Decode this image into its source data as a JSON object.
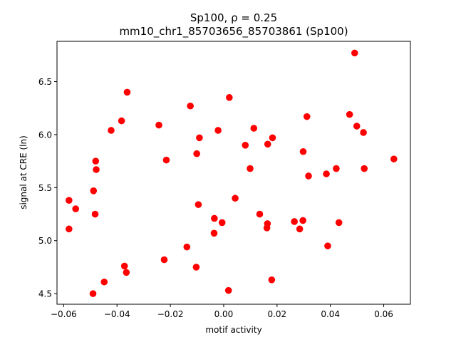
{
  "chart_data": {
    "type": "scatter",
    "title_line1": "Sp100, ρ = 0.25",
    "title_line2": "mm10_chr1_85703656_85703861 (Sp100)",
    "xlabel": "motif activity",
    "ylabel": "signal at CRE (ln)",
    "xlim": [
      -0.0625,
      0.07
    ],
    "ylim": [
      4.4,
      6.88
    ],
    "xticks": [
      -0.06,
      -0.04,
      -0.02,
      0.0,
      0.02,
      0.04,
      0.06
    ],
    "xtick_labels": [
      "−0.06",
      "−0.04",
      "−0.02",
      "0.00",
      "0.02",
      "0.04",
      "0.06"
    ],
    "yticks": [
      4.5,
      5.0,
      5.5,
      6.0,
      6.5
    ],
    "ytick_labels": [
      "4.5",
      "5.0",
      "5.5",
      "6.0",
      "6.5"
    ],
    "marker_color": "#ff0000",
    "grid": false,
    "points": [
      {
        "x": -0.058,
        "y": 5.38
      },
      {
        "x": -0.058,
        "y": 5.11
      },
      {
        "x": -0.0555,
        "y": 5.3
      },
      {
        "x": -0.049,
        "y": 4.5
      },
      {
        "x": -0.0488,
        "y": 5.47
      },
      {
        "x": -0.0482,
        "y": 5.25
      },
      {
        "x": -0.048,
        "y": 5.75
      },
      {
        "x": -0.0478,
        "y": 5.67
      },
      {
        "x": -0.0448,
        "y": 4.61
      },
      {
        "x": -0.0422,
        "y": 6.04
      },
      {
        "x": -0.0383,
        "y": 6.13
      },
      {
        "x": -0.0372,
        "y": 4.76
      },
      {
        "x": -0.0365,
        "y": 4.7
      },
      {
        "x": -0.0362,
        "y": 6.4
      },
      {
        "x": -0.0243,
        "y": 6.09
      },
      {
        "x": -0.0223,
        "y": 4.82
      },
      {
        "x": -0.0215,
        "y": 5.76
      },
      {
        "x": -0.0138,
        "y": 4.94
      },
      {
        "x": -0.0125,
        "y": 6.27
      },
      {
        "x": -0.0103,
        "y": 4.75
      },
      {
        "x": -0.0101,
        "y": 5.82
      },
      {
        "x": -0.0095,
        "y": 5.34
      },
      {
        "x": -0.0091,
        "y": 5.97
      },
      {
        "x": -0.0036,
        "y": 5.07
      },
      {
        "x": -0.0035,
        "y": 5.21
      },
      {
        "x": -0.0021,
        "y": 6.04
      },
      {
        "x": -0.0006,
        "y": 5.17
      },
      {
        "x": 0.0018,
        "y": 4.53
      },
      {
        "x": 0.0021,
        "y": 6.35
      },
      {
        "x": 0.0043,
        "y": 5.4
      },
      {
        "x": 0.0081,
        "y": 5.9
      },
      {
        "x": 0.0099,
        "y": 5.68
      },
      {
        "x": 0.0113,
        "y": 6.06
      },
      {
        "x": 0.0135,
        "y": 5.25
      },
      {
        "x": 0.0162,
        "y": 5.12
      },
      {
        "x": 0.0164,
        "y": 5.16
      },
      {
        "x": 0.0165,
        "y": 5.91
      },
      {
        "x": 0.018,
        "y": 4.63
      },
      {
        "x": 0.0183,
        "y": 5.97
      },
      {
        "x": 0.0265,
        "y": 5.18
      },
      {
        "x": 0.0285,
        "y": 5.11
      },
      {
        "x": 0.0297,
        "y": 5.19
      },
      {
        "x": 0.0298,
        "y": 5.84
      },
      {
        "x": 0.0312,
        "y": 6.17
      },
      {
        "x": 0.0318,
        "y": 5.61
      },
      {
        "x": 0.0385,
        "y": 5.63
      },
      {
        "x": 0.039,
        "y": 4.95
      },
      {
        "x": 0.0422,
        "y": 5.68
      },
      {
        "x": 0.0432,
        "y": 5.17
      },
      {
        "x": 0.0472,
        "y": 6.19
      },
      {
        "x": 0.0491,
        "y": 6.77
      },
      {
        "x": 0.0499,
        "y": 6.08
      },
      {
        "x": 0.0524,
        "y": 6.02
      },
      {
        "x": 0.0527,
        "y": 5.68
      },
      {
        "x": 0.0638,
        "y": 5.77
      }
    ]
  }
}
